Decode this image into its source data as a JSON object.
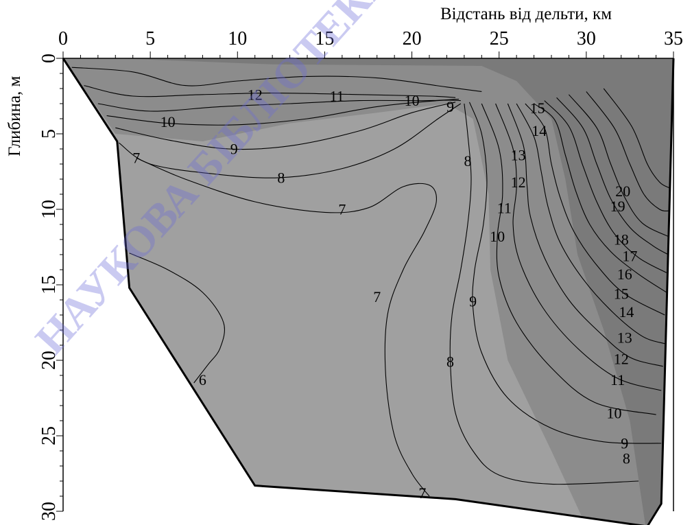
{
  "chart_data": {
    "type": "contour",
    "xlabel": "Відстань від дельти, км",
    "ylabel": "Глибина, м",
    "x_ticks": [
      0,
      5,
      10,
      15,
      20,
      25,
      30,
      35
    ],
    "y_ticks": [
      0,
      5,
      10,
      15,
      20,
      25,
      30
    ],
    "xlim": [
      0,
      35
    ],
    "ylim": [
      0,
      30
    ],
    "x_axis_position": "top",
    "y_axis_inverted": true,
    "contour_levels": [
      6,
      7,
      8,
      9,
      10,
      11,
      12,
      13,
      14,
      15,
      16,
      17,
      18,
      19,
      20
    ],
    "bottom_profile": [
      {
        "x": 0,
        "y": 0
      },
      {
        "x": 3.1,
        "y": 5.5
      },
      {
        "x": 3.8,
        "y": 15.2
      },
      {
        "x": 11,
        "y": 28.3
      },
      {
        "x": 22.5,
        "y": 29.2
      },
      {
        "x": 33.5,
        "y": 31
      },
      {
        "x": 34.3,
        "y": 29.5
      },
      {
        "x": 35,
        "y": 0
      }
    ],
    "contour_labels": [
      {
        "text": "12",
        "x": 11,
        "y": 2.4
      },
      {
        "text": "11",
        "x": 15.7,
        "y": 2.5
      },
      {
        "text": "10",
        "x": 20,
        "y": 2.8
      },
      {
        "text": "9",
        "x": 22.2,
        "y": 3.2
      },
      {
        "text": "10",
        "x": 6,
        "y": 4.2
      },
      {
        "text": "9",
        "x": 9.8,
        "y": 6
      },
      {
        "text": "7",
        "x": 4.2,
        "y": 6.6
      },
      {
        "text": "8",
        "x": 12.5,
        "y": 7.9
      },
      {
        "text": "7",
        "x": 16,
        "y": 10
      },
      {
        "text": "8",
        "x": 23.2,
        "y": 6.8
      },
      {
        "text": "15",
        "x": 27.2,
        "y": 3.3
      },
      {
        "text": "14",
        "x": 27.3,
        "y": 4.8
      },
      {
        "text": "13",
        "x": 26.1,
        "y": 6.4
      },
      {
        "text": "12",
        "x": 26.1,
        "y": 8.2
      },
      {
        "text": "11",
        "x": 25.3,
        "y": 9.9
      },
      {
        "text": "10",
        "x": 24.9,
        "y": 11.8
      },
      {
        "text": "9",
        "x": 23.5,
        "y": 16.1
      },
      {
        "text": "8",
        "x": 22.2,
        "y": 20.1
      },
      {
        "text": "7",
        "x": 18,
        "y": 15.8
      },
      {
        "text": "6",
        "x": 8,
        "y": 21.3
      },
      {
        "text": "7",
        "x": 20.6,
        "y": 28.8
      },
      {
        "text": "20",
        "x": 32.1,
        "y": 8.8
      },
      {
        "text": "19",
        "x": 31.8,
        "y": 9.8
      },
      {
        "text": "18",
        "x": 32,
        "y": 12
      },
      {
        "text": "17",
        "x": 32.5,
        "y": 13.1
      },
      {
        "text": "16",
        "x": 32.2,
        "y": 14.3
      },
      {
        "text": "15",
        "x": 32,
        "y": 15.6
      },
      {
        "text": "14",
        "x": 32.3,
        "y": 16.8
      },
      {
        "text": "13",
        "x": 32.2,
        "y": 18.5
      },
      {
        "text": "12",
        "x": 32,
        "y": 19.9
      },
      {
        "text": "11",
        "x": 31.8,
        "y": 21.3
      },
      {
        "text": "10",
        "x": 31.6,
        "y": 23.5
      },
      {
        "text": "9",
        "x": 32.2,
        "y": 25.5
      },
      {
        "text": "8",
        "x": 32.3,
        "y": 26.5
      }
    ],
    "watermark": "НАУКОВА БІБЛІОТЕКА ОНУ",
    "colors": {
      "fill_low": "#a0a0a0",
      "fill_mid": "#8c8c8c",
      "fill_high": "#7a7a7a",
      "lines": "#000000",
      "watermark": "#6a6ad8"
    }
  }
}
